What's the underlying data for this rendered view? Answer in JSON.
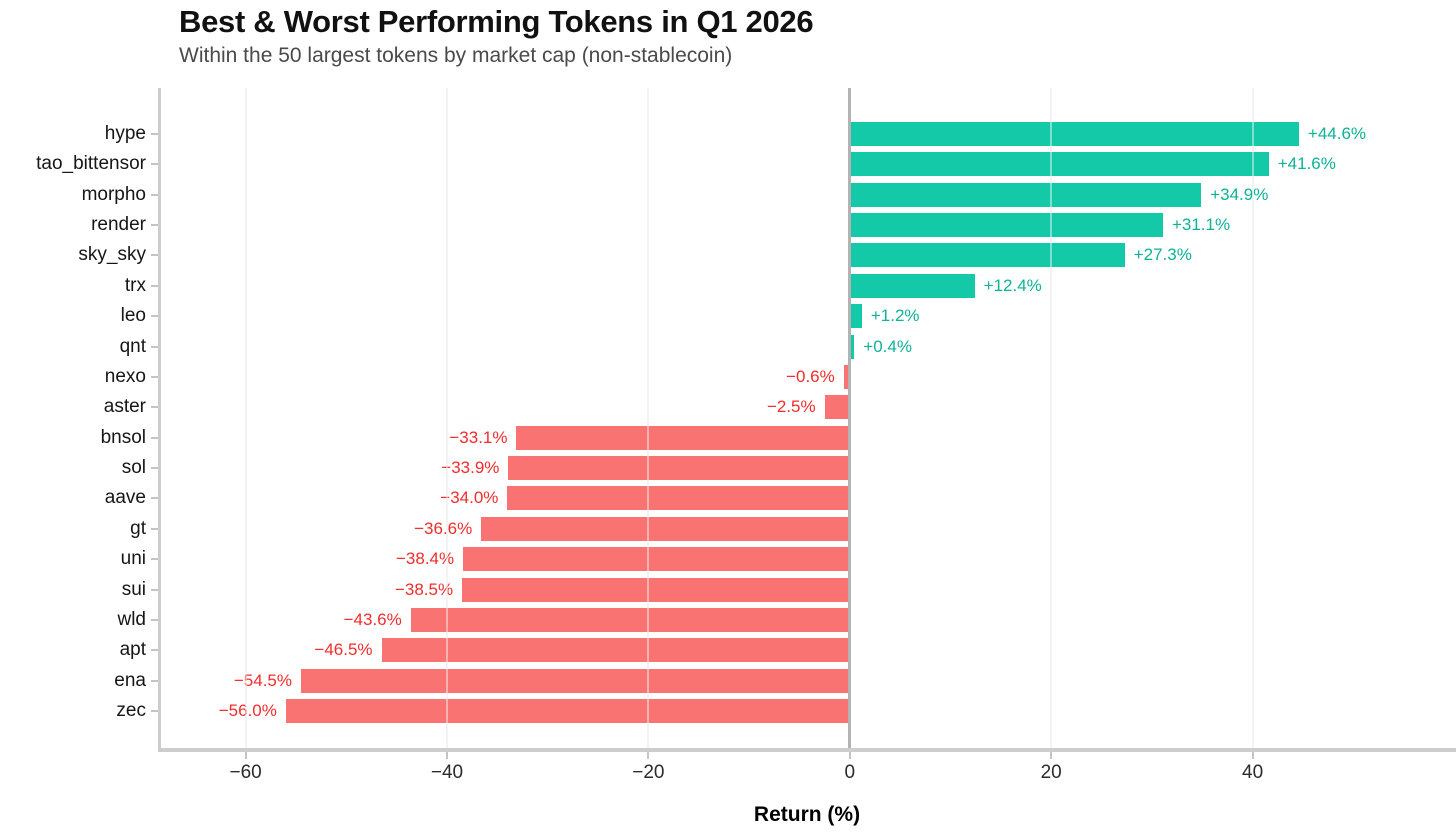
{
  "chart_data": {
    "type": "bar",
    "orientation": "horizontal",
    "title": "Best & Worst Performing Tokens in Q1 2026",
    "subtitle": "Within the 50 largest tokens by market cap (non-stablecoin)",
    "xlabel": "Return (%)",
    "categories": [
      "hype",
      "tao_bittensor",
      "morpho",
      "render",
      "sky_sky",
      "trx",
      "leo",
      "qnt",
      "nexo",
      "aster",
      "bnsol",
      "sol",
      "aave",
      "gt",
      "uni",
      "sui",
      "wld",
      "apt",
      "ena",
      "zec"
    ],
    "values": [
      44.6,
      41.6,
      34.9,
      31.1,
      27.3,
      12.4,
      1.2,
      0.4,
      -0.6,
      -2.5,
      -33.1,
      -33.9,
      -34.0,
      -36.6,
      -38.4,
      -38.5,
      -43.6,
      -46.5,
      -54.5,
      -56.0
    ],
    "value_labels": [
      "+44.6%",
      "+41.6%",
      "+34.9%",
      "+31.1%",
      "+27.3%",
      "+12.4%",
      "+1.2%",
      "+0.4%",
      "−0.6%",
      "−2.5%",
      "−33.1%",
      "−33.9%",
      "−34.0%",
      "−36.6%",
      "−38.4%",
      "−38.5%",
      "−43.6%",
      "−46.5%",
      "−54.5%",
      "−56.0%"
    ],
    "xticks": [
      -60,
      -40,
      -20,
      0,
      20,
      40
    ],
    "xtick_labels": [
      "−60",
      "−40",
      "−20",
      "0",
      "20",
      "40"
    ],
    "xlim": [
      -68.7,
      60.2
    ],
    "grid": "vertical-light",
    "legend": "none"
  },
  "colors": {
    "positive_bar": "#13c9a7",
    "negative_bar": "#fa7373",
    "positive_value_text": "#0db396",
    "negative_value_text": "#f22c2c",
    "gridline": "#eaeaea",
    "zero_line": "#b3b3b3",
    "axis_spine": "#cdcdcd",
    "tick_mark": "#c4c4c4",
    "title_text": "#111111",
    "subtitle_text": "#4a4a4a",
    "axis_tick_text": "#2b2b2b",
    "category_text": "#161616"
  }
}
